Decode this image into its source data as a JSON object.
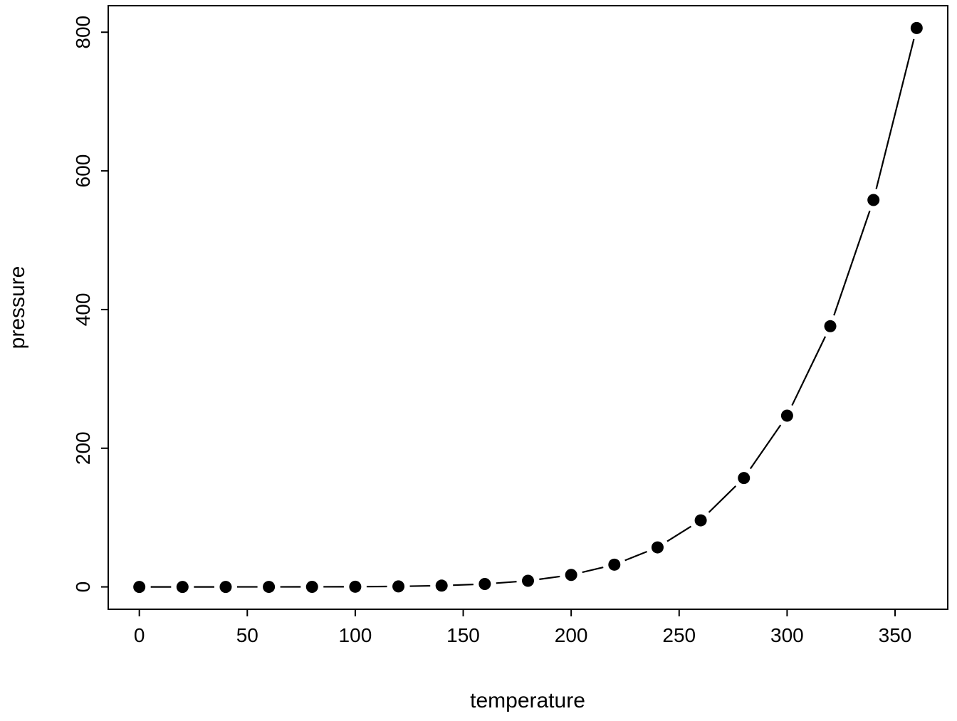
{
  "chart_data": {
    "type": "scatter",
    "subtype": "points-with-line-segments",
    "title": "",
    "xlabel": "temperature",
    "ylabel": "pressure",
    "x": [
      0,
      20,
      40,
      60,
      80,
      100,
      120,
      140,
      160,
      180,
      200,
      220,
      240,
      260,
      280,
      300,
      320,
      340,
      360
    ],
    "y": [
      0.0002,
      0.0012,
      0.006,
      0.03,
      0.09,
      0.27,
      0.75,
      1.85,
      4.2,
      8.8,
      17.3,
      32.1,
      57.0,
      96.0,
      157.0,
      247.0,
      376.0,
      558.0,
      806.0
    ],
    "x_ticks": [
      0,
      50,
      100,
      150,
      200,
      250,
      300,
      350
    ],
    "y_ticks": [
      0,
      200,
      400,
      600,
      800
    ],
    "xlim": [
      0,
      360
    ],
    "ylim": [
      0.0002,
      806
    ],
    "grid": false,
    "legend": null,
    "point_color": "#000000",
    "line_color": "#000000",
    "axis_color": "#000000",
    "background": "#ffffff"
  }
}
